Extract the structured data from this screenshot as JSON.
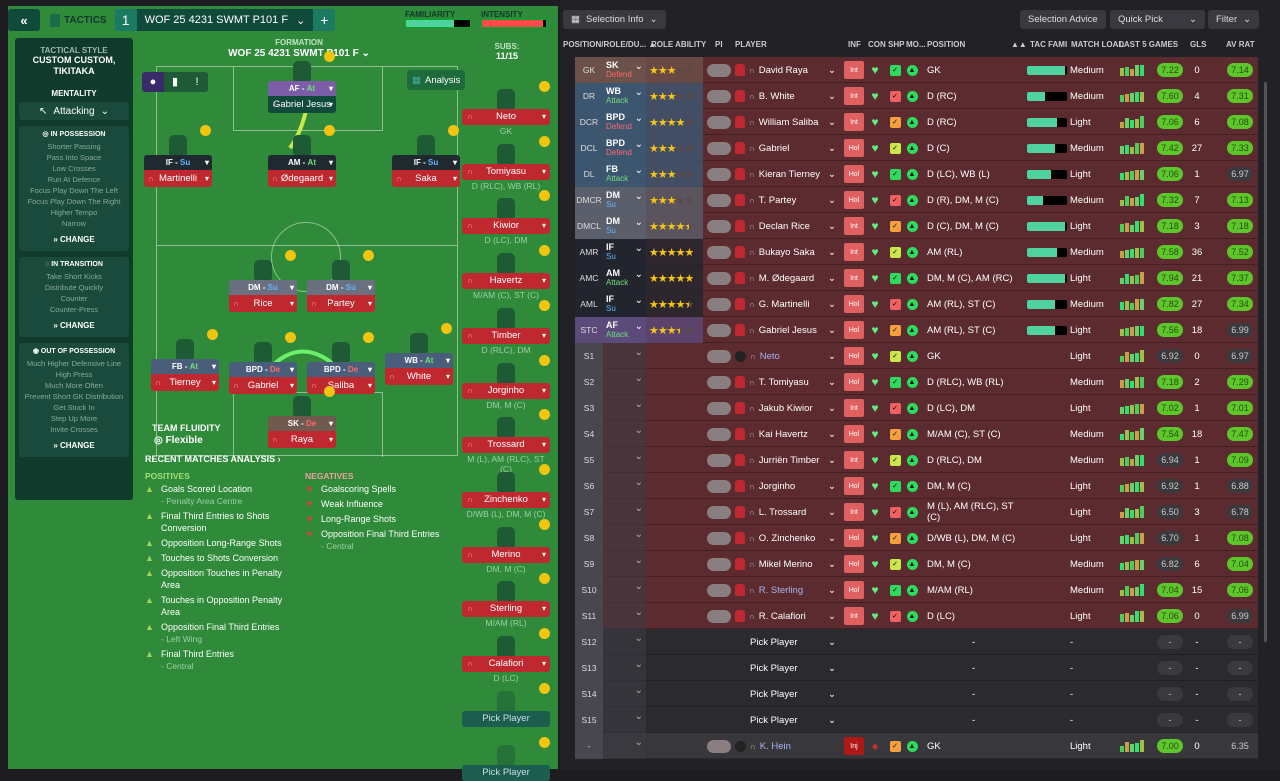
{
  "topbar": {
    "back_icon": "«",
    "tactics_label": "TACTICS",
    "tab_number": "1",
    "tab_name": "WOF 25  4231 SWMT  P101 F",
    "add_label": "+",
    "familiarity_label": "FAMILIARITY",
    "familiarity_value": 0.75,
    "intensity_label": "INTENSITY",
    "intensity_value": 0.95,
    "colors": {
      "familiarity": "#4fd1a0",
      "intensity": "#ff4a4a"
    }
  },
  "sidebar": {
    "style_title": "TACTICAL STYLE",
    "style_value": "CUSTOM CUSTOM, TIKITAKA",
    "mentality_title": "MENTALITY",
    "mentality_value": "Attacking",
    "in_possession": {
      "title": "IN POSSESSION",
      "items": [
        "Shorter Passing",
        "Pass Into Space",
        "Low Crosses",
        "Run At Defence",
        "Focus Play Down The Left",
        "Focus Play Down The Right",
        "Higher Tempo",
        "Narrow"
      ],
      "change": "CHANGE"
    },
    "in_transition": {
      "title": "IN TRANSITION",
      "items": [
        "Take Short Kicks",
        "Distribute Quickly",
        "Counter",
        "Counter-Press"
      ],
      "change": "CHANGE"
    },
    "out_of_possession": {
      "title": "OUT OF POSSESSION",
      "items": [
        "Much Higher Defensive Line",
        "High Press",
        "Much More Often",
        "Prevent Short GK Distribution",
        "Get Stuck In",
        "Step Up More",
        "Invite Crosses"
      ],
      "change": "CHANGE"
    }
  },
  "pitch": {
    "formation_label": "FORMATION",
    "formation_name": "WOF 25  4231 SWMT  P101 F",
    "analysis_label": "Analysis",
    "subs_label": "SUBS:",
    "subs_count": "11/15",
    "team_fluidity_label": "TEAM FLUIDITY",
    "team_fluidity_value": "Flexible",
    "cards": [
      {
        "role": "AF",
        "duty": "At",
        "player": "Gabriel Jesus"
      },
      {
        "role": "IF",
        "duty": "Su",
        "player": "Martinelli"
      },
      {
        "role": "AM",
        "duty": "At",
        "player": "Ødegaard"
      },
      {
        "role": "IF",
        "duty": "Su",
        "player": "Saka"
      },
      {
        "role": "DM",
        "duty": "Su",
        "player": "Rice"
      },
      {
        "role": "DM",
        "duty": "Su",
        "player": "Partey"
      },
      {
        "role": "FB",
        "duty": "At",
        "player": "Tierney"
      },
      {
        "role": "BPD",
        "duty": "De",
        "player": "Gabriel"
      },
      {
        "role": "BPD",
        "duty": "De",
        "player": "Saliba"
      },
      {
        "role": "WB",
        "duty": "At",
        "player": "White"
      },
      {
        "role": "SK",
        "duty": "De",
        "player": "Raya"
      }
    ],
    "subs": [
      {
        "name": "Neto",
        "pos": "GK"
      },
      {
        "name": "Tomiyasu",
        "pos": "D (RLC), WB (RL)"
      },
      {
        "name": "Kiwior",
        "pos": "D (LC), DM"
      },
      {
        "name": "Havertz",
        "pos": "M/AM (C), ST (C)"
      },
      {
        "name": "Timber",
        "pos": "D (RLC), DM"
      },
      {
        "name": "Jorginho",
        "pos": "DM, M (C)"
      },
      {
        "name": "Trossard",
        "pos": "M (L), AM (RLC), ST (C)"
      },
      {
        "name": "Zinchenko",
        "pos": "D/WB (L), DM, M (C)"
      },
      {
        "name": "Merino",
        "pos": "DM, M (C)"
      },
      {
        "name": "Sterling",
        "pos": "M/AM (RL)"
      },
      {
        "name": "Calafiori",
        "pos": "D (LC)"
      },
      {
        "pick": "Pick Player"
      },
      {
        "pick": "Pick Player"
      }
    ]
  },
  "analysis": {
    "title": "RECENT MATCHES ANALYSIS ›",
    "positives_label": "POSITIVES",
    "positives": [
      {
        "text": "Goals Scored Location",
        "sub": "- Penalty Area Centre"
      },
      {
        "text": "Final Third Entries to Shots Conversion"
      },
      {
        "text": "Opposition Long-Range Shots"
      },
      {
        "text": "Touches to Shots Conversion"
      },
      {
        "text": "Opposition Touches in Penalty Area"
      },
      {
        "text": "Touches in Opposition Penalty Area"
      },
      {
        "text": "Opposition Final Third Entries",
        "sub": "- Left Wing"
      },
      {
        "text": "Final Third Entries",
        "sub": "- Central"
      }
    ],
    "negatives_label": "NEGATIVES",
    "negatives": [
      {
        "text": "Goalscoring Spells"
      },
      {
        "text": "Weak Influence"
      },
      {
        "text": "Long-Range Shots"
      },
      {
        "text": "Opposition Final Third Entries",
        "sub": "- Central"
      }
    ]
  },
  "right": {
    "selection_info": "Selection Info",
    "selection_advice": "Selection Advice",
    "quick_pick": "Quick Pick",
    "filter": "Filter",
    "headers": {
      "pos": "POSITION/ROLE/DU... ▲",
      "ability": "ROLE ABILITY",
      "pi": "PI",
      "player": "PLAYER",
      "inf": "INF",
      "con": "CON",
      "shp": "SHP",
      "mo": "MO...",
      "position": "POSITION",
      "sort": "▲▲",
      "tac": "TAC FAMI",
      "load": "MATCH LOAD",
      "last5": "LAST 5 GAMES",
      "gls": "GLS",
      "av": "AV RAT"
    },
    "rows": [
      {
        "pos": "GK",
        "role": "SK",
        "duty": "Defend",
        "stars": 3,
        "player": "David Raya",
        "inf": "Int",
        "position": "GK",
        "tac": 0.95,
        "load": "Medium",
        "form": "7.22",
        "gls": "0",
        "av": "7.14",
        "grp": "gk"
      },
      {
        "pos": "DR",
        "role": "WB",
        "duty": "Attack",
        "stars": 3,
        "player": "B. White",
        "inf": "Int",
        "position": "D (RC)",
        "tac": 0.45,
        "load": "Medium",
        "form": "7.60",
        "gls": "4",
        "av": "7.31",
        "grp": "d"
      },
      {
        "pos": "DCR",
        "role": "BPD",
        "duty": "Defend",
        "stars": 4,
        "player": "William Saliba",
        "inf": "Int",
        "position": "D (RC)",
        "tac": 0.75,
        "load": "Light",
        "form": "7.06",
        "gls": "6",
        "av": "7.08",
        "grp": "d"
      },
      {
        "pos": "DCL",
        "role": "BPD",
        "duty": "Defend",
        "stars": 3,
        "player": "Gabriel",
        "inf": "Hol",
        "position": "D (C)",
        "tac": 0.7,
        "load": "Medium",
        "form": "7.42",
        "gls": "27",
        "av": "7.33",
        "grp": "d"
      },
      {
        "pos": "DL",
        "role": "FB",
        "duty": "Attack",
        "stars": 3,
        "player": "Kieran Tierney",
        "inf": "Hol",
        "position": "D (LC), WB (L)",
        "tac": 0.6,
        "load": "Light",
        "form": "7.06",
        "gls": "1",
        "av": "6.97",
        "grp": "d"
      },
      {
        "pos": "DMCR",
        "role": "DM",
        "duty": "Su",
        "stars": 3,
        "player": "T. Partey",
        "inf": "Hol",
        "position": "D (R), DM, M (C)",
        "tac": 0.4,
        "load": "Medium",
        "form": "7.32",
        "gls": "7",
        "av": "7.13",
        "grp": "dm"
      },
      {
        "pos": "DMCL",
        "role": "DM",
        "duty": "Su",
        "stars": 4.5,
        "player": "Declan Rice",
        "inf": "Int",
        "position": "D (C), DM, M (C)",
        "tac": 0.95,
        "load": "Light",
        "form": "7.18",
        "gls": "3",
        "av": "7.18",
        "grp": "dm"
      },
      {
        "pos": "AMR",
        "role": "IF",
        "duty": "Su",
        "stars": 5,
        "player": "Bukayo Saka",
        "inf": "Int",
        "position": "AM (RL)",
        "tac": 0.75,
        "load": "Medium",
        "form": "7.58",
        "gls": "36",
        "av": "7.52",
        "grp": "am"
      },
      {
        "pos": "AMC",
        "role": "AM",
        "duty": "Attack",
        "stars": 5,
        "player": "M. Ødegaard",
        "inf": "Int",
        "position": "DM, M (C), AM (RC)",
        "tac": 0.95,
        "load": "Light",
        "form": "7.94",
        "gls": "21",
        "av": "7.37",
        "grp": "am"
      },
      {
        "pos": "AML",
        "role": "IF",
        "duty": "Su",
        "stars": 4.5,
        "player": "G. Martinelli",
        "inf": "Hol",
        "position": "AM (RL), ST (C)",
        "tac": 0.7,
        "load": "Medium",
        "form": "7.82",
        "gls": "27",
        "av": "7.34",
        "grp": "am"
      },
      {
        "pos": "STC",
        "role": "AF",
        "duty": "Attack",
        "stars": 3.5,
        "player": "Gabriel Jesus",
        "inf": "Hol",
        "position": "AM (RL), ST (C)",
        "tac": 0.7,
        "load": "Light",
        "form": "7.56",
        "gls": "18",
        "av": "6.99",
        "grp": "st"
      },
      {
        "pos": "S1",
        "player": "Neto",
        "inf": "Hol",
        "position": "GK",
        "load": "Light",
        "form": "6.92",
        "gls": "0",
        "av": "6.97",
        "grp": "s",
        "gk": true
      },
      {
        "pos": "S2",
        "player": "T. Tomiyasu",
        "inf": "Hol",
        "position": "D (RLC), WB (RL)",
        "load": "Medium",
        "form": "7.18",
        "gls": "2",
        "av": "7.29",
        "grp": "s"
      },
      {
        "pos": "S3",
        "player": "Jakub Kiwior",
        "inf": "Int",
        "position": "D (LC), DM",
        "load": "Light",
        "form": "7.02",
        "gls": "1",
        "av": "7.01",
        "grp": "s"
      },
      {
        "pos": "S4",
        "player": "Kai Havertz",
        "inf": "Hol",
        "position": "M/AM (C), ST (C)",
        "load": "Medium",
        "form": "7.54",
        "gls": "18",
        "av": "7.47",
        "grp": "s"
      },
      {
        "pos": "S5",
        "player": "Jurriën Timber",
        "inf": "Int",
        "position": "D (RLC), DM",
        "load": "Medium",
        "form": "6.94",
        "gls": "1",
        "av": "7.09",
        "grp": "s"
      },
      {
        "pos": "S6",
        "player": "Jorginho",
        "inf": "Hol",
        "position": "DM, M (C)",
        "load": "Light",
        "form": "6.92",
        "gls": "1",
        "av": "6.88",
        "grp": "s"
      },
      {
        "pos": "S7",
        "player": "L. Trossard",
        "inf": "Int",
        "position": "M (L), AM (RLC), ST (C)",
        "load": "Light",
        "form": "6.50",
        "gls": "3",
        "av": "6.78",
        "grp": "s"
      },
      {
        "pos": "S8",
        "player": "O. Zinchenko",
        "inf": "Hol",
        "position": "D/WB (L), DM, M (C)",
        "load": "Light",
        "form": "6.70",
        "gls": "1",
        "av": "7.08",
        "grp": "s"
      },
      {
        "pos": "S9",
        "player": "Mikel Merino",
        "inf": "Hol",
        "position": "DM, M (C)",
        "load": "Medium",
        "form": "6.82",
        "gls": "6",
        "av": "7.04",
        "grp": "s"
      },
      {
        "pos": "S10",
        "player": "R. Sterling",
        "inf": "Hol",
        "position": "M/AM (RL)",
        "load": "Medium",
        "form": "7.04",
        "gls": "15",
        "av": "7.06",
        "grp": "s"
      },
      {
        "pos": "S11",
        "player": "R. Calafiori",
        "inf": "Int",
        "position": "D (LC)",
        "load": "Light",
        "form": "7.06",
        "gls": "0",
        "av": "6.99",
        "grp": "s"
      },
      {
        "pos": "S12",
        "player": "Pick Player",
        "position": "-",
        "load": "-",
        "form": "-",
        "gls": "-",
        "av": "-",
        "grp": "s",
        "pick": true
      },
      {
        "pos": "S13",
        "player": "Pick Player",
        "position": "-",
        "load": "-",
        "form": "-",
        "gls": "-",
        "av": "-",
        "grp": "s",
        "pick": true
      },
      {
        "pos": "S14",
        "player": "Pick Player",
        "position": "-",
        "load": "-",
        "form": "-",
        "gls": "-",
        "av": "-",
        "grp": "s",
        "pick": true
      },
      {
        "pos": "S15",
        "player": "Pick Player",
        "position": "-",
        "load": "-",
        "form": "-",
        "gls": "-",
        "av": "-",
        "grp": "s",
        "pick": true
      },
      {
        "pos": "-",
        "player": "K. Hein",
        "inf": "Inj",
        "position": "GK",
        "load": "Light",
        "form": "7.00",
        "gls": "0",
        "av": "6.35",
        "grp": "s",
        "ex": true,
        "gk": true
      }
    ]
  }
}
